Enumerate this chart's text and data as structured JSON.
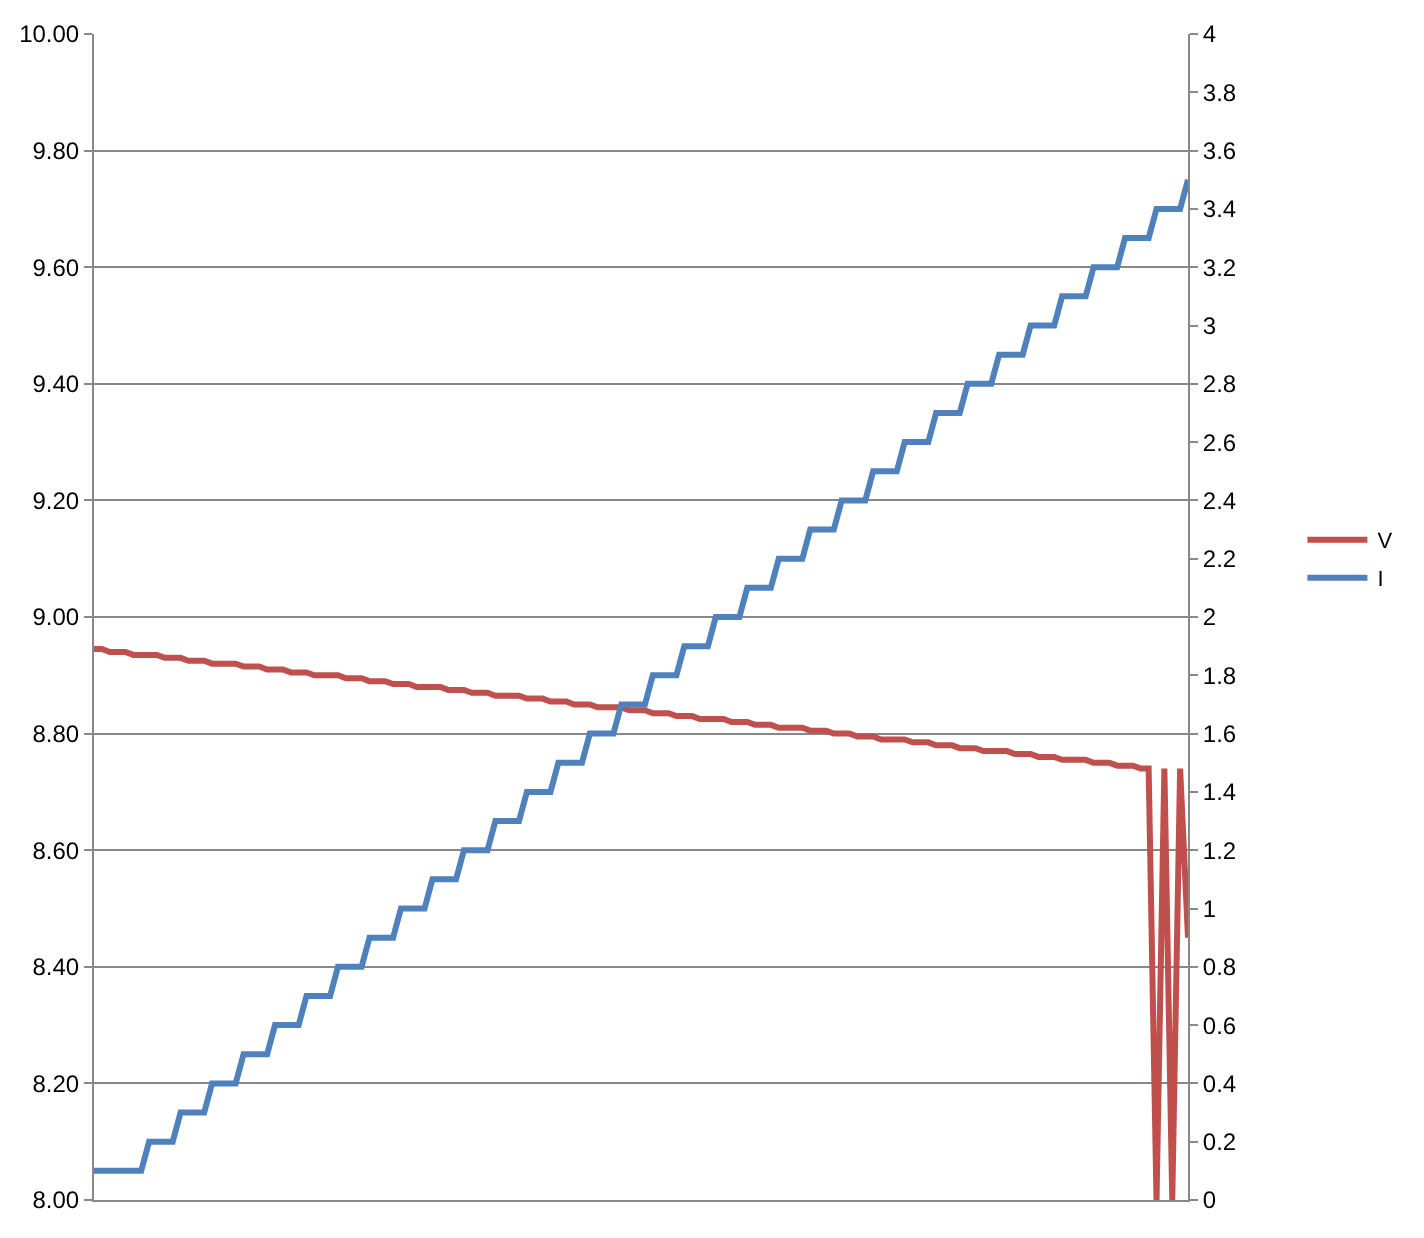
{
  "chart_data": {
    "type": "line",
    "categories": [
      null,
      null,
      null,
      null,
      null,
      null,
      null,
      null,
      null,
      null,
      null,
      null,
      null,
      null,
      null,
      null,
      null,
      null,
      null,
      null,
      null,
      null,
      null,
      null,
      null,
      null,
      null,
      null,
      null,
      null,
      null,
      null,
      null,
      null,
      null,
      null,
      null,
      null,
      null,
      null,
      null,
      null,
      null,
      null,
      null,
      null,
      null,
      null,
      null,
      null,
      null,
      null,
      null,
      null,
      null,
      null,
      null,
      null,
      null,
      null,
      null,
      null,
      null,
      null,
      null,
      null,
      null,
      null,
      null,
      null,
      null,
      null,
      null,
      null,
      null,
      null,
      null,
      null,
      null,
      null,
      null,
      null,
      null,
      null,
      null,
      null,
      null,
      null,
      null,
      null,
      null,
      null,
      null,
      null,
      null,
      null,
      null,
      null,
      null,
      null,
      null,
      null,
      null,
      null,
      null,
      null,
      null,
      null,
      null,
      null,
      null,
      null,
      null,
      null,
      null,
      null,
      null,
      null,
      null,
      null,
      null,
      null,
      null,
      null,
      null,
      null,
      null,
      null,
      null,
      null,
      null,
      null,
      null,
      null,
      null,
      null,
      null,
      null,
      null,
      null
    ],
    "series": [
      {
        "name": "V",
        "color": "#c0504d",
        "values": [
          8.945,
          8.945,
          8.94,
          8.94,
          8.94,
          8.935,
          8.935,
          8.935,
          8.935,
          8.93,
          8.93,
          8.93,
          8.925,
          8.925,
          8.925,
          8.92,
          8.92,
          8.92,
          8.92,
          8.915,
          8.915,
          8.915,
          8.91,
          8.91,
          8.91,
          8.905,
          8.905,
          8.905,
          8.9,
          8.9,
          8.9,
          8.9,
          8.895,
          8.895,
          8.895,
          8.89,
          8.89,
          8.89,
          8.885,
          8.885,
          8.885,
          8.88,
          8.88,
          8.88,
          8.88,
          8.875,
          8.875,
          8.875,
          8.87,
          8.87,
          8.87,
          8.865,
          8.865,
          8.865,
          8.865,
          8.86,
          8.86,
          8.86,
          8.855,
          8.855,
          8.855,
          8.85,
          8.85,
          8.85,
          8.845,
          8.845,
          8.845,
          8.845,
          8.84,
          8.84,
          8.84,
          8.835,
          8.835,
          8.835,
          8.83,
          8.83,
          8.83,
          8.825,
          8.825,
          8.825,
          8.825,
          8.82,
          8.82,
          8.82,
          8.815,
          8.815,
          8.815,
          8.81,
          8.81,
          8.81,
          8.81,
          8.805,
          8.805,
          8.805,
          8.8,
          8.8,
          8.8,
          8.795,
          8.795,
          8.795,
          8.79,
          8.79,
          8.79,
          8.79,
          8.785,
          8.785,
          8.785,
          8.78,
          8.78,
          8.78,
          8.775,
          8.775,
          8.775,
          8.77,
          8.77,
          8.77,
          8.77,
          8.765,
          8.765,
          8.765,
          8.76,
          8.76,
          8.76,
          8.755,
          8.755,
          8.755,
          8.755,
          8.75,
          8.75,
          8.75,
          8.745,
          8.745,
          8.745,
          8.74,
          8.74,
          8.0,
          8.74,
          8.0,
          8.74,
          8.45
        ]
      },
      {
        "name": "I",
        "color": "#4f81bd",
        "axis": "y2",
        "values": [
          0.1,
          0.1,
          0.1,
          0.1,
          0.1,
          0.1,
          0.1,
          0.2,
          0.2,
          0.2,
          0.2,
          0.3,
          0.3,
          0.3,
          0.3,
          0.4,
          0.4,
          0.4,
          0.4,
          0.5,
          0.5,
          0.5,
          0.5,
          0.6,
          0.6,
          0.6,
          0.6,
          0.7,
          0.7,
          0.7,
          0.7,
          0.8,
          0.8,
          0.8,
          0.8,
          0.9,
          0.9,
          0.9,
          0.9,
          1.0,
          1.0,
          1.0,
          1.0,
          1.1,
          1.1,
          1.1,
          1.1,
          1.2,
          1.2,
          1.2,
          1.2,
          1.3,
          1.3,
          1.3,
          1.3,
          1.4,
          1.4,
          1.4,
          1.4,
          1.5,
          1.5,
          1.5,
          1.5,
          1.6,
          1.6,
          1.6,
          1.6,
          1.7,
          1.7,
          1.7,
          1.7,
          1.8,
          1.8,
          1.8,
          1.8,
          1.9,
          1.9,
          1.9,
          1.9,
          2.0,
          2.0,
          2.0,
          2.0,
          2.1,
          2.1,
          2.1,
          2.1,
          2.2,
          2.2,
          2.2,
          2.2,
          2.3,
          2.3,
          2.3,
          2.3,
          2.4,
          2.4,
          2.4,
          2.4,
          2.5,
          2.5,
          2.5,
          2.5,
          2.6,
          2.6,
          2.6,
          2.6,
          2.7,
          2.7,
          2.7,
          2.7,
          2.8,
          2.8,
          2.8,
          2.8,
          2.9,
          2.9,
          2.9,
          2.9,
          3.0,
          3.0,
          3.0,
          3.0,
          3.1,
          3.1,
          3.1,
          3.1,
          3.2,
          3.2,
          3.2,
          3.2,
          3.3,
          3.3,
          3.3,
          3.3,
          3.4,
          3.4,
          3.4,
          3.4,
          3.5
        ]
      }
    ],
    "ylim": [
      8,
      10
    ],
    "yticks": [
      {
        "value": 8,
        "label": "8.00"
      },
      {
        "value": 8.2,
        "label": "8.20"
      },
      {
        "value": 8.4,
        "label": "8.40"
      },
      {
        "value": 8.6,
        "label": "8.60"
      },
      {
        "value": 8.8,
        "label": "8.80"
      },
      {
        "value": 9,
        "label": "9.00"
      },
      {
        "value": 9.2,
        "label": "9.20"
      },
      {
        "value": 9.4,
        "label": "9.40"
      },
      {
        "value": 9.6,
        "label": "9.60"
      },
      {
        "value": 9.8,
        "label": "9.80"
      },
      {
        "value": 10,
        "label": "10.00"
      }
    ],
    "y2lim": [
      0,
      4
    ],
    "y2ticks": [
      0,
      0.2,
      0.4,
      0.6,
      0.8,
      1,
      1.2,
      1.4,
      1.6,
      1.8,
      2,
      2.2,
      2.4,
      2.6,
      2.8,
      3,
      3.2,
      3.4,
      3.6,
      3.8,
      4
    ],
    "grid": "y",
    "legend": "right",
    "marker": "none",
    "line_style": "solid"
  }
}
